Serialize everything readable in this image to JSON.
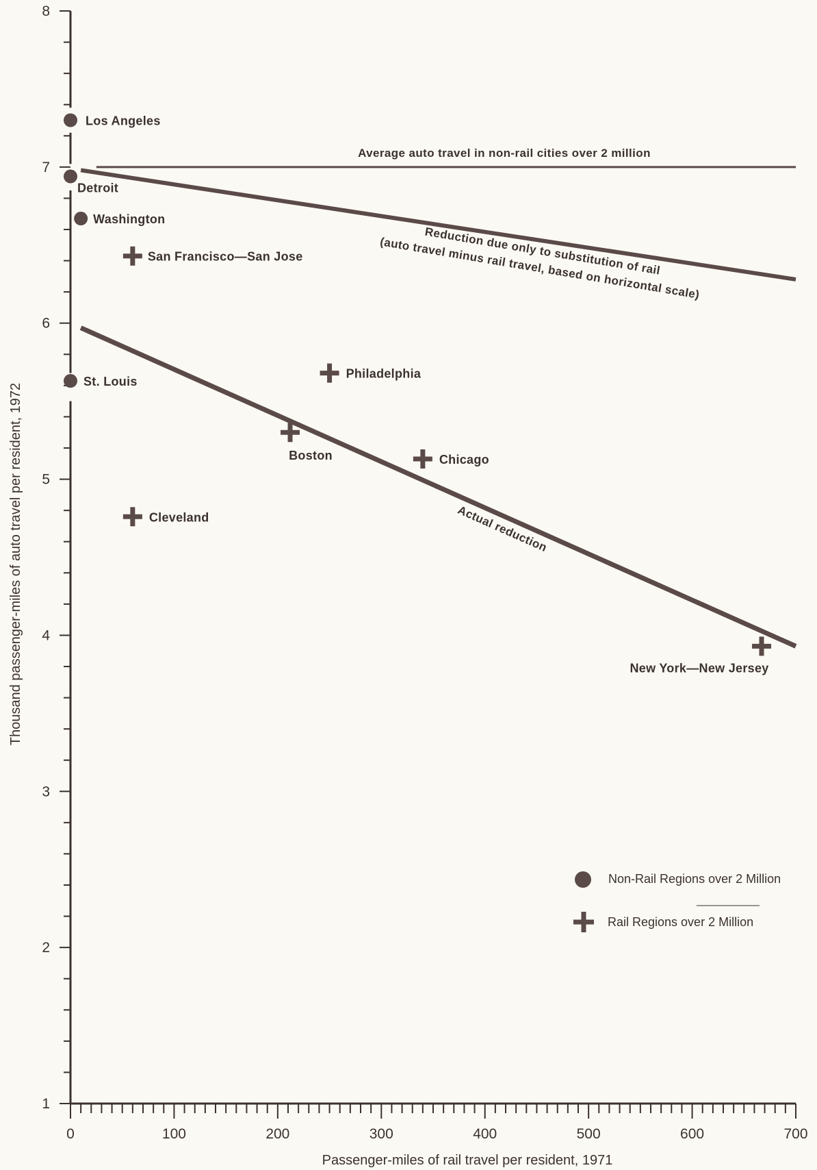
{
  "chart_data": {
    "type": "scatter",
    "xlabel": "Passenger-miles of rail travel per resident, 1971",
    "ylabel": "Thousand passenger-miles of auto travel per resident, 1972",
    "xlim": [
      0,
      700
    ],
    "ylim": [
      1,
      8
    ],
    "x_ticks": [
      "0",
      "100",
      "200",
      "300",
      "400",
      "500",
      "600",
      "700"
    ],
    "y_ticks": [
      "1",
      "2",
      "3",
      "4",
      "5",
      "6",
      "7",
      "8"
    ],
    "grid": false,
    "colors": {
      "ink": "#3a3130",
      "line": "#5a4a48",
      "background": "#fbf9f3"
    },
    "legend": {
      "placement": "bottom-right",
      "items": [
        {
          "marker": "circle",
          "label": "Non-Rail Regions over 2 Million"
        },
        {
          "marker": "plus",
          "label": "Rail Regions over 2 Million"
        }
      ]
    },
    "series": [
      {
        "name": "Non-Rail Regions over 2 Million",
        "marker": "circle",
        "points": [
          {
            "label": "Los Angeles",
            "x": 0,
            "y": 7.3
          },
          {
            "label": "Detroit",
            "x": 0,
            "y": 6.94
          },
          {
            "label": "Washington",
            "x": 10,
            "y": 6.67
          },
          {
            "label": "St. Louis",
            "x": 0,
            "y": 5.63
          }
        ]
      },
      {
        "name": "Rail Regions over 2 Million",
        "marker": "plus",
        "points": [
          {
            "label": "San Francisco—San Jose",
            "x": 60,
            "y": 6.43
          },
          {
            "label": "Philadelphia",
            "x": 250,
            "y": 5.68
          },
          {
            "label": "Boston",
            "x": 212,
            "y": 5.3
          },
          {
            "label": "Chicago",
            "x": 340,
            "y": 5.13
          },
          {
            "label": "Cleveland",
            "x": 60,
            "y": 4.76
          },
          {
            "label": "New York—New Jersey",
            "x": 667,
            "y": 3.93
          }
        ]
      }
    ],
    "lines": [
      {
        "label": "Average auto travel in non-rail cities over 2 million",
        "x": [
          25,
          700
        ],
        "y": [
          7.0,
          7.0
        ]
      },
      {
        "label": "Reduction due only to substitution of rail",
        "label2": "(auto travel minus rail travel, based on horizontal scale)",
        "x": [
          10,
          700
        ],
        "y": [
          6.98,
          6.28
        ]
      },
      {
        "label": "Actual reduction",
        "x": [
          10,
          700
        ],
        "y": [
          5.97,
          3.93
        ]
      }
    ]
  }
}
